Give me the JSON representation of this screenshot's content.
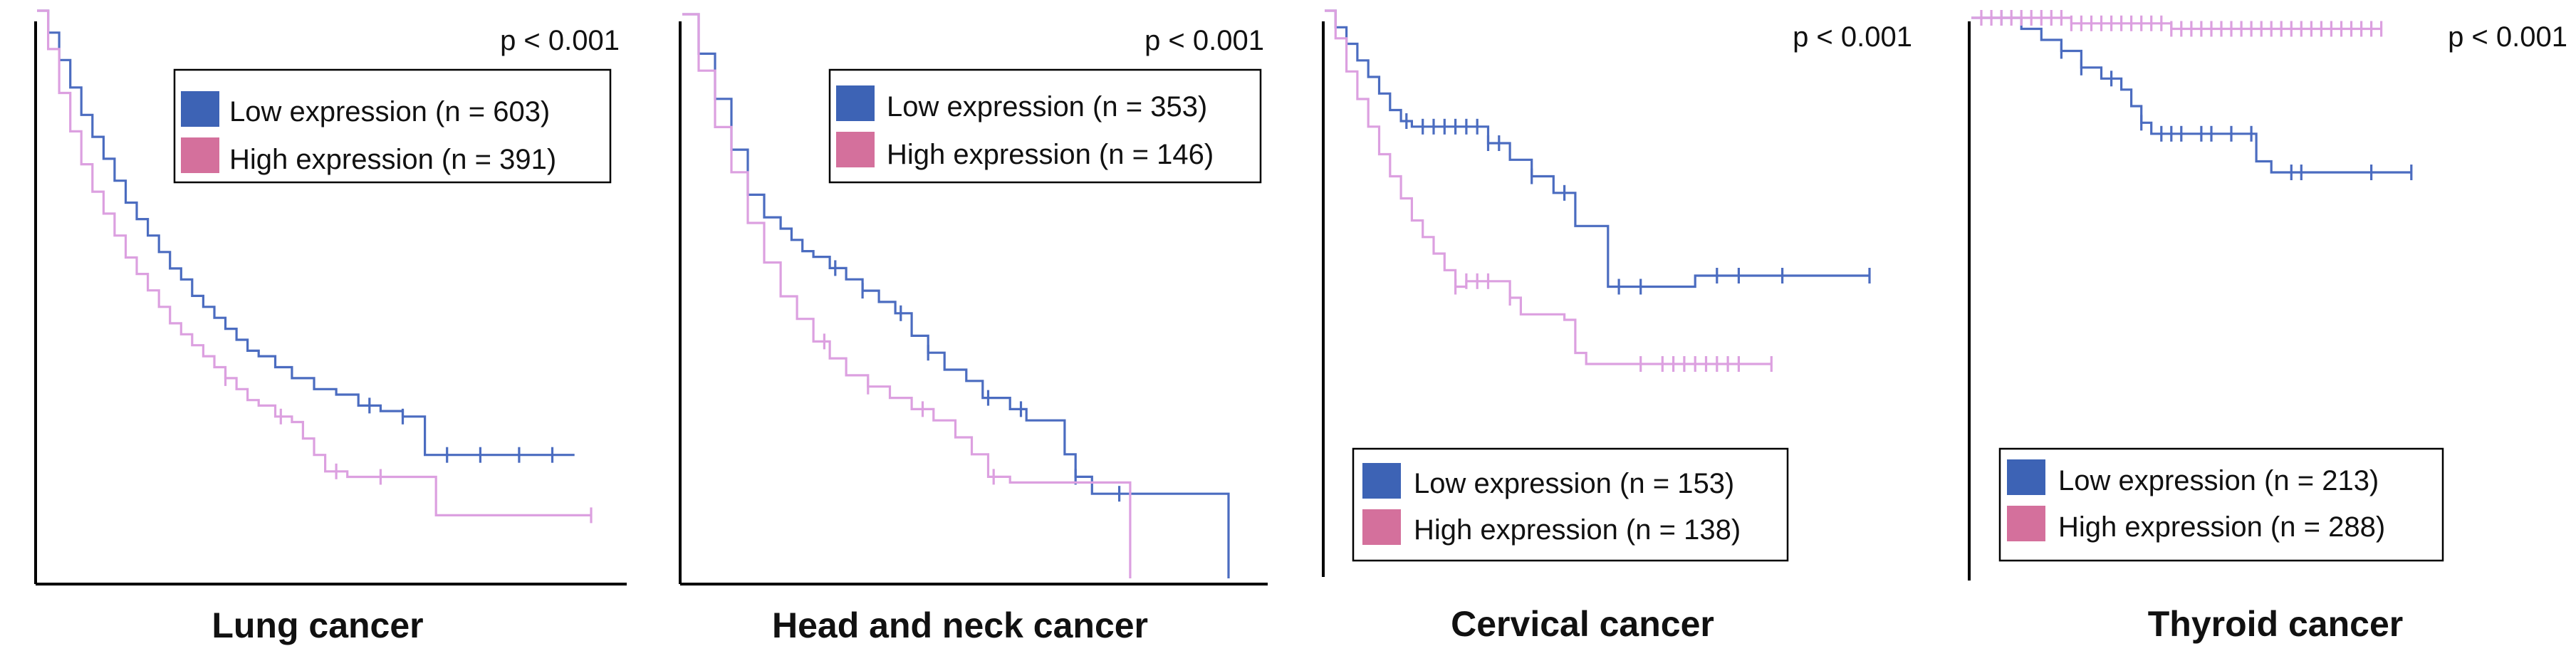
{
  "colors": {
    "low_curve": "#4B6CC0",
    "high_curve": "#DCA0E0",
    "low_swatch": "#3D63B5",
    "high_swatch": "#D4709C"
  },
  "chart_data": [
    {
      "type": "line",
      "title": "Lung cancer",
      "p_label": "p < 0.001",
      "xlabel": "",
      "ylabel": "",
      "xlim": [
        0,
        100
      ],
      "ylim": [
        0,
        100
      ],
      "legend": {
        "position": "top-right",
        "entries": [
          "Low expression (n = 603)",
          "High expression (n = 391)"
        ]
      },
      "series": [
        {
          "name": "Low expression (n = 603)",
          "x": [
            0,
            2,
            4,
            6,
            8,
            10,
            12,
            14,
            16,
            18,
            20,
            22,
            24,
            26,
            28,
            30,
            32,
            34,
            36,
            38,
            40,
            43,
            46,
            50,
            54,
            58,
            62,
            66,
            69,
            70,
            74,
            80,
            87,
            97
          ],
          "y": [
            100,
            96,
            91,
            86,
            81,
            77,
            73,
            69,
            65,
            62,
            59,
            56,
            53,
            51,
            48,
            46,
            44,
            42,
            40,
            38,
            37,
            35,
            33,
            31,
            30,
            28,
            27,
            26,
            26,
            19,
            19,
            19,
            19,
            19
          ],
          "censor_x": [
            60,
            66,
            74,
            80,
            87,
            93
          ]
        },
        {
          "name": "High expression (n = 391)",
          "x": [
            0,
            2,
            4,
            6,
            8,
            10,
            12,
            14,
            16,
            18,
            20,
            22,
            24,
            26,
            28,
            30,
            32,
            34,
            36,
            38,
            40,
            43,
            46,
            48,
            50,
            52,
            56,
            60,
            64,
            70,
            72,
            100
          ],
          "y": [
            100,
            93,
            85,
            78,
            72,
            67,
            63,
            59,
            55,
            52,
            49,
            46,
            43,
            41,
            39,
            37,
            35,
            33,
            31,
            29,
            28,
            26,
            25,
            22,
            19,
            16,
            15,
            15,
            15,
            15,
            8,
            8
          ],
          "censor_x": [
            34,
            44,
            54,
            62,
            100
          ]
        }
      ]
    },
    {
      "type": "line",
      "title": "Head and neck cancer",
      "p_label": "p < 0.001",
      "xlabel": "",
      "ylabel": "",
      "xlim": [
        0,
        100
      ],
      "ylim": [
        0,
        100
      ],
      "legend": {
        "position": "top-right",
        "entries": [
          "Low expression (n = 353)",
          "High expression (n = 146)"
        ]
      },
      "series": [
        {
          "name": "Low expression (n = 353)",
          "x": [
            0,
            3,
            6,
            9,
            12,
            15,
            18,
            20,
            22,
            24,
            27,
            30,
            33,
            36,
            39,
            42,
            45,
            48,
            52,
            55,
            60,
            63,
            65,
            70,
            72,
            75,
            80,
            90,
            100
          ],
          "y": [
            100,
            93,
            85,
            76,
            68,
            64,
            62,
            60,
            58,
            57,
            55,
            53,
            51,
            49,
            47,
            43,
            40,
            37,
            35,
            32,
            30,
            28,
            28,
            22,
            18,
            15,
            15,
            15,
            0
          ],
          "censor_x": [
            28,
            33,
            40,
            45,
            56,
            62,
            72,
            80
          ]
        },
        {
          "name": "High expression (n = 146)",
          "x": [
            0,
            3,
            6,
            9,
            12,
            15,
            18,
            21,
            24,
            27,
            30,
            34,
            38,
            42,
            46,
            50,
            53,
            56,
            60,
            70,
            80,
            82,
            82
          ],
          "y": [
            100,
            90,
            80,
            72,
            63,
            56,
            50,
            46,
            42,
            39,
            36,
            34,
            32,
            30,
            28,
            25,
            22,
            18,
            17,
            17,
            17,
            17,
            0
          ],
          "censor_x": [
            26,
            34,
            44,
            57
          ]
        }
      ]
    },
    {
      "type": "line",
      "title": "Cervical cancer",
      "p_label": "p < 0.001",
      "xlabel": "",
      "ylabel": "",
      "xlim": [
        0,
        100
      ],
      "ylim": [
        0,
        100
      ],
      "legend": {
        "position": "bottom-right",
        "entries": [
          "Low expression (n = 153)",
          "High expression (n = 138)"
        ]
      },
      "series": [
        {
          "name": "Low expression (n = 153)",
          "x": [
            0,
            2,
            4,
            6,
            8,
            10,
            12,
            14,
            16,
            20,
            26,
            30,
            34,
            38,
            42,
            46,
            48,
            52,
            60,
            68,
            80,
            90,
            100
          ],
          "y": [
            100,
            97,
            94,
            91,
            88,
            85,
            82,
            80,
            79,
            79,
            79,
            76,
            73,
            70,
            67,
            61,
            61,
            50,
            50,
            52,
            52,
            52,
            52
          ],
          "censor_x": [
            15,
            18,
            20,
            22,
            24,
            26,
            28,
            30,
            32,
            38,
            44,
            54,
            58,
            72,
            76,
            84,
            100
          ]
        },
        {
          "name": "High expression (n = 138)",
          "x": [
            0,
            2,
            4,
            6,
            8,
            10,
            12,
            14,
            16,
            18,
            20,
            22,
            24,
            26,
            30,
            34,
            36,
            38,
            44,
            46,
            48,
            60,
            80,
            82
          ],
          "y": [
            100,
            95,
            89,
            84,
            79,
            74,
            70,
            66,
            62,
            59,
            56,
            53,
            50,
            51,
            51,
            48,
            45,
            45,
            44,
            38,
            36,
            36,
            36,
            36
          ],
          "censor_x": [
            24,
            26,
            28,
            30,
            34,
            58,
            62,
            64,
            66,
            68,
            70,
            72,
            74,
            76,
            82
          ]
        }
      ]
    },
    {
      "type": "line",
      "title": "Thyroid cancer",
      "p_label": "p < 0.001",
      "xlabel": "",
      "ylabel": "",
      "xlim": [
        0,
        100
      ],
      "ylim": [
        0,
        100
      ],
      "legend": {
        "position": "bottom-right",
        "entries": [
          "Low expression (n = 213)",
          "High expression (n = 288)"
        ]
      },
      "series": [
        {
          "name": "Low expression (n = 213)",
          "x": [
            0,
            10,
            14,
            18,
            22,
            26,
            30,
            32,
            34,
            36,
            38,
            50,
            55,
            57,
            60,
            68,
            80,
            88
          ],
          "y": [
            100,
            98,
            96,
            94,
            91,
            89,
            87,
            84,
            81,
            79,
            79,
            79,
            79,
            74,
            72,
            72,
            72,
            72
          ],
          "censor_x": [
            6,
            18,
            22,
            28,
            34,
            38,
            40,
            42,
            46,
            48,
            52,
            56,
            64,
            66,
            80,
            88
          ]
        },
        {
          "name": "High expression (n = 288)",
          "x": [
            0,
            20,
            40,
            60,
            80,
            82
          ],
          "y": [
            100,
            99,
            98,
            98,
            98,
            98
          ],
          "censor_x": [
            2,
            4,
            6,
            8,
            10,
            12,
            14,
            16,
            18,
            20,
            22,
            24,
            26,
            28,
            30,
            32,
            34,
            36,
            38,
            40,
            42,
            44,
            46,
            48,
            50,
            52,
            54,
            56,
            58,
            60,
            62,
            64,
            66,
            68,
            70,
            72,
            74,
            76,
            78,
            80,
            82
          ]
        }
      ]
    }
  ]
}
